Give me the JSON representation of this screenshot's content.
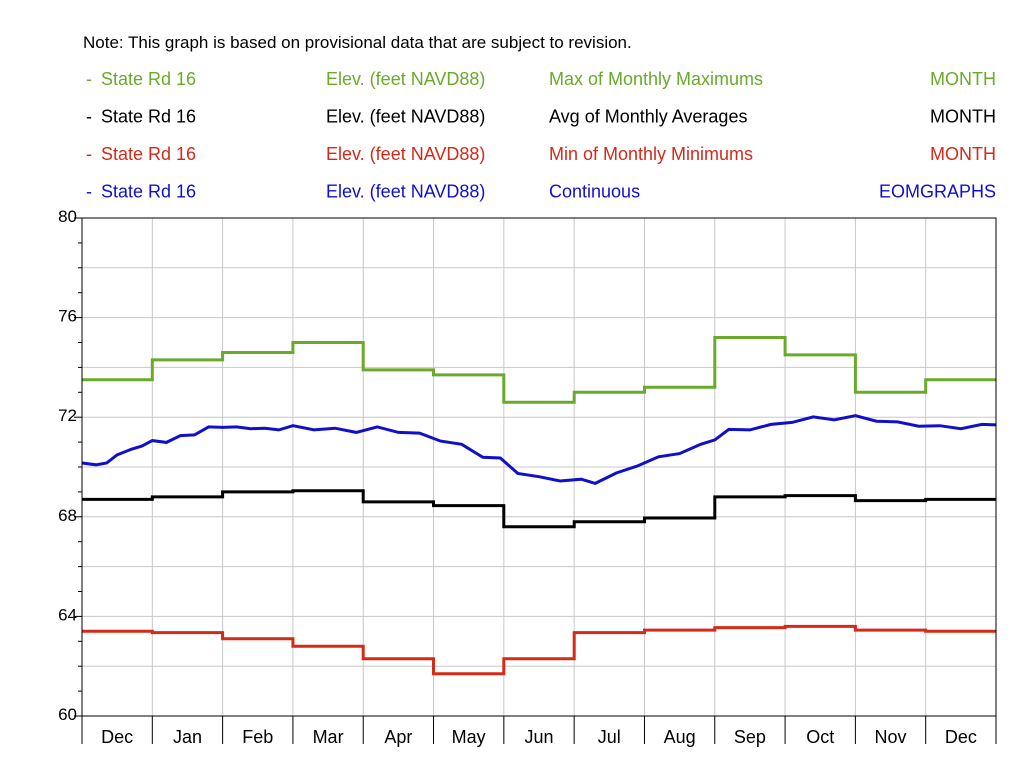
{
  "chart_data": {
    "type": "line",
    "note": "Note: This graph is based on provisional data that are subject to revision.",
    "ylim": [
      60,
      80
    ],
    "yticks": [
      "60",
      "64",
      "68",
      "72",
      "76",
      "80"
    ],
    "x_segments": [
      "Dec",
      "Jan",
      "Feb",
      "Mar",
      "Apr",
      "May",
      "Jun",
      "Jul",
      "Aug",
      "Sep",
      "Oct",
      "Nov",
      "Dec"
    ],
    "grid": true,
    "legend": [
      {
        "marker": "-",
        "site": "State Rd 16",
        "parameter": "Elev. (feet NAVD88)",
        "statistic": "Max of Monthly Maximums",
        "period": "MONTH",
        "color": "#6aaa2a"
      },
      {
        "marker": "-",
        "site": "State Rd 16",
        "parameter": "Elev. (feet NAVD88)",
        "statistic": "Avg of Monthly Averages",
        "period": "MONTH",
        "color": "#000000"
      },
      {
        "marker": "-",
        "site": "State Rd 16",
        "parameter": "Elev. (feet NAVD88)",
        "statistic": "Min of Monthly Minimums",
        "period": "MONTH",
        "color": "#d42a18"
      },
      {
        "marker": "-",
        "site": "State Rd 16",
        "parameter": "Elev. (feet NAVD88)",
        "statistic": "Continuous",
        "period": "EOMGRAPHS",
        "color": "#1010cc"
      }
    ],
    "series": [
      {
        "kind": "step",
        "color": "#6aaa2a",
        "values": [
          73.5,
          74.3,
          74.6,
          75.0,
          73.9,
          73.7,
          72.6,
          73.0,
          73.2,
          75.2,
          74.5,
          73.0,
          73.5
        ]
      },
      {
        "kind": "step",
        "color": "#000000",
        "values": [
          68.7,
          68.8,
          69.0,
          69.05,
          68.6,
          68.45,
          67.6,
          67.8,
          67.95,
          68.8,
          68.85,
          68.65,
          68.7
        ]
      },
      {
        "kind": "step",
        "color": "#d42a18",
        "values": [
          63.4,
          63.35,
          63.1,
          62.8,
          62.3,
          61.7,
          62.3,
          63.35,
          63.45,
          63.55,
          63.6,
          63.45,
          63.4
        ]
      },
      {
        "kind": "continuous",
        "color": "#1010cc",
        "x": [
          0,
          0.2,
          0.35,
          0.5,
          0.7,
          0.85,
          1.0,
          1.2,
          1.4,
          1.6,
          1.8,
          2.0,
          2.2,
          2.4,
          2.6,
          2.8,
          3.0,
          3.3,
          3.6,
          3.9,
          4.2,
          4.5,
          4.8,
          5.1,
          5.4,
          5.7,
          5.95,
          6.2,
          6.5,
          6.8,
          7.1,
          7.3,
          7.6,
          7.9,
          8.2,
          8.5,
          8.8,
          9.0,
          9.2,
          9.5,
          9.8,
          10.1,
          10.4,
          10.7,
          11.0,
          11.3,
          11.6,
          11.9,
          12.2,
          12.5,
          12.8,
          13.0
        ],
        "values": [
          70.1,
          70.15,
          70.1,
          70.55,
          70.65,
          70.9,
          71.0,
          71.05,
          71.2,
          71.35,
          71.55,
          71.65,
          71.55,
          71.6,
          71.5,
          71.55,
          71.6,
          71.55,
          71.5,
          71.45,
          71.55,
          71.45,
          71.3,
          71.1,
          70.85,
          70.45,
          70.3,
          69.8,
          69.55,
          69.5,
          69.45,
          69.4,
          69.7,
          70.1,
          70.35,
          70.6,
          70.85,
          71.15,
          71.45,
          71.55,
          71.65,
          71.85,
          71.95,
          71.95,
          72.0,
          71.9,
          71.75,
          71.7,
          71.6,
          71.6,
          71.65,
          71.75
        ]
      }
    ]
  }
}
